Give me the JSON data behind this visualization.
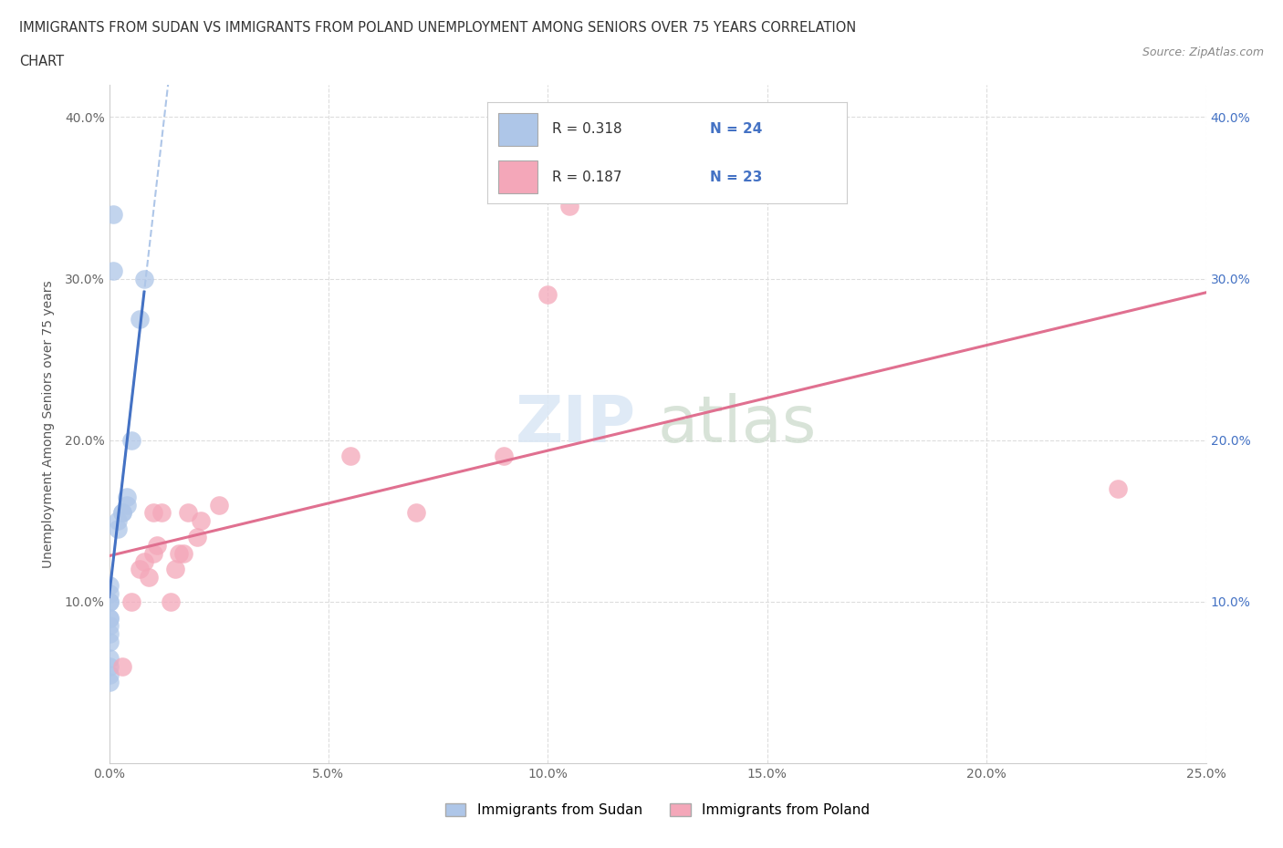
{
  "title_line1": "IMMIGRANTS FROM SUDAN VS IMMIGRANTS FROM POLAND UNEMPLOYMENT AMONG SENIORS OVER 75 YEARS CORRELATION",
  "title_line2": "CHART",
  "source": "Source: ZipAtlas.com",
  "ylabel": "Unemployment Among Seniors over 75 years",
  "xlim": [
    0.0,
    0.25
  ],
  "ylim": [
    0.0,
    0.42
  ],
  "xticks": [
    0.0,
    0.05,
    0.1,
    0.15,
    0.2,
    0.25
  ],
  "yticks": [
    0.0,
    0.1,
    0.2,
    0.3,
    0.4
  ],
  "ytick_labels": [
    "",
    "10.0%",
    "20.0%",
    "30.0%",
    "40.0%"
  ],
  "xtick_labels": [
    "0.0%",
    "5.0%",
    "10.0%",
    "15.0%",
    "20.0%",
    "25.0%"
  ],
  "sudan_color": "#aec6e8",
  "sudan_line_color": "#4472c4",
  "sudan_dash_color": "#aec6e8",
  "poland_color": "#f4a7b9",
  "poland_line_color": "#e07090",
  "sudan_R": 0.318,
  "sudan_N": 24,
  "poland_R": 0.187,
  "poland_N": 23,
  "legend_sudan_label": "Immigrants from Sudan",
  "legend_poland_label": "Immigrants from Poland",
  "sudan_points": [
    [
      0.0,
      0.05
    ],
    [
      0.0,
      0.055
    ],
    [
      0.0,
      0.06
    ],
    [
      0.0,
      0.065
    ],
    [
      0.0,
      0.075
    ],
    [
      0.0,
      0.08
    ],
    [
      0.0,
      0.085
    ],
    [
      0.0,
      0.09
    ],
    [
      0.0,
      0.09
    ],
    [
      0.0,
      0.1
    ],
    [
      0.0,
      0.1
    ],
    [
      0.0,
      0.105
    ],
    [
      0.0,
      0.11
    ],
    [
      0.002,
      0.145
    ],
    [
      0.002,
      0.15
    ],
    [
      0.003,
      0.155
    ],
    [
      0.003,
      0.155
    ],
    [
      0.004,
      0.16
    ],
    [
      0.004,
      0.165
    ],
    [
      0.005,
      0.2
    ],
    [
      0.007,
      0.275
    ],
    [
      0.008,
      0.3
    ],
    [
      0.001,
      0.34
    ],
    [
      0.001,
      0.305
    ]
  ],
  "poland_points": [
    [
      0.003,
      0.06
    ],
    [
      0.005,
      0.1
    ],
    [
      0.007,
      0.12
    ],
    [
      0.008,
      0.125
    ],
    [
      0.009,
      0.115
    ],
    [
      0.01,
      0.13
    ],
    [
      0.01,
      0.155
    ],
    [
      0.011,
      0.135
    ],
    [
      0.012,
      0.155
    ],
    [
      0.014,
      0.1
    ],
    [
      0.015,
      0.12
    ],
    [
      0.016,
      0.13
    ],
    [
      0.017,
      0.13
    ],
    [
      0.018,
      0.155
    ],
    [
      0.02,
      0.14
    ],
    [
      0.021,
      0.15
    ],
    [
      0.025,
      0.16
    ],
    [
      0.055,
      0.19
    ],
    [
      0.07,
      0.155
    ],
    [
      0.09,
      0.19
    ],
    [
      0.1,
      0.29
    ],
    [
      0.105,
      0.345
    ],
    [
      0.23,
      0.17
    ]
  ],
  "watermark_zip": "ZIP",
  "watermark_atlas": "atlas",
  "background_color": "#ffffff",
  "grid_color": "#dddddd"
}
